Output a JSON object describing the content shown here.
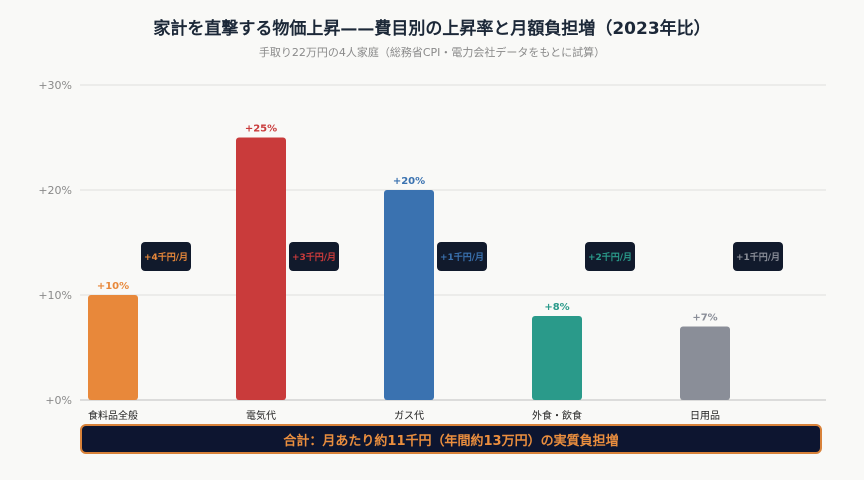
{
  "title": "家計を直撃する物価上昇——費目別の上昇率と月額負担増（2023年比）",
  "subtitle": "手取り22万円の4人家庭（総務省CPI・電力会社データをもとに試算）",
  "chart_data": {
    "type": "bar",
    "categories": [
      "食料品全般",
      "電気代",
      "ガス代",
      "外食・飲食",
      "日用品"
    ],
    "values": [
      10,
      25,
      20,
      8,
      7
    ],
    "value_labels": [
      "+10%",
      "+25%",
      "+20%",
      "+8%",
      "+7%"
    ],
    "colors": [
      "#e8883a",
      "#c93b3b",
      "#3a72b0",
      "#2a9a8a",
      "#8a8e98"
    ],
    "annotations": [
      "+4千円/月",
      "+3千円/月",
      "+1千円/月",
      "+2千円/月",
      "+1千円/月"
    ],
    "yticks": [
      0,
      10,
      20,
      30
    ],
    "ytick_labels": [
      "+0%",
      "+10%",
      "+20%",
      "+30%"
    ],
    "ylim": [
      0,
      30
    ],
    "grid": true,
    "xlabel": "",
    "ylabel": ""
  },
  "summary": "合計：月あたり約11千円（年間約13万円）の実質負担増"
}
